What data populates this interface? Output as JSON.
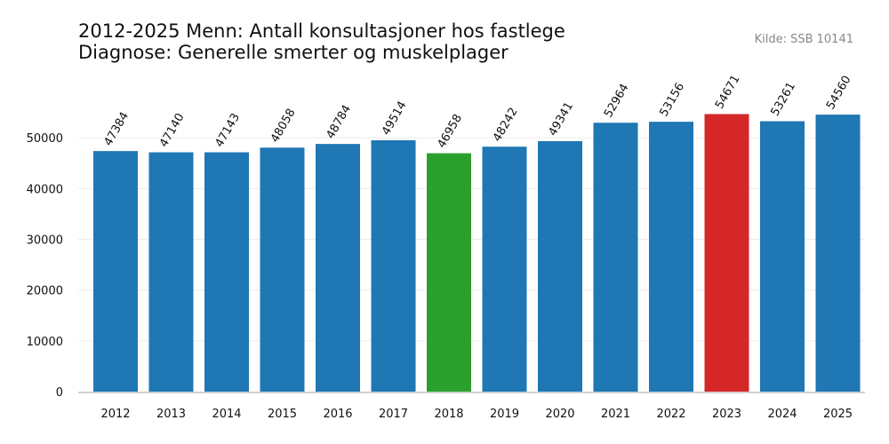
{
  "chart_data": {
    "type": "bar",
    "title": "2012-2025 Menn: Antall konsultasjoner hos fastlege",
    "subtitle": "Diagnose: Generelle smerter og muskelplager",
    "source": "Kilde: SSB 10141",
    "xlabel": "",
    "ylabel": "",
    "categories": [
      "2012",
      "2013",
      "2014",
      "2015",
      "2016",
      "2017",
      "2018",
      "2019",
      "2020",
      "2021",
      "2022",
      "2023",
      "2024",
      "2025"
    ],
    "values": [
      47384,
      47140,
      47143,
      48058,
      48784,
      49514,
      46958,
      48242,
      49341,
      52964,
      53156,
      54671,
      53261,
      54560
    ],
    "yticks": [
      0,
      10000,
      20000,
      30000,
      40000,
      50000
    ],
    "ylim": [
      0,
      60000
    ],
    "grid": true,
    "colors": {
      "default": "#1f77b4",
      "min": "#2ca02c",
      "max": "#d62728"
    }
  }
}
